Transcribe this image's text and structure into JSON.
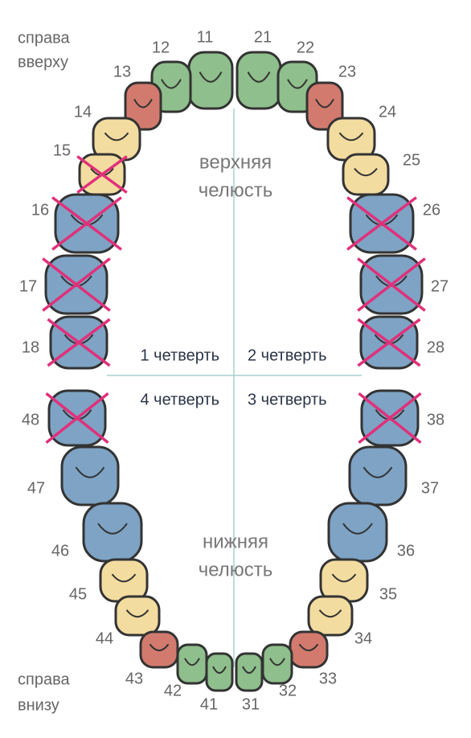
{
  "corner_notes": {
    "top_left": [
      "справа",
      "вверху"
    ],
    "bottom_left": [
      "справа",
      "внизу"
    ]
  },
  "jaw_labels": {
    "upper": [
      "верхняя",
      "челюсть"
    ],
    "lower": [
      "нижняя",
      "челюсть"
    ]
  },
  "quadrants": [
    "1 четверть",
    "2 четверть",
    "3 четверть",
    "4 четверть"
  ],
  "teeth": [
    {
      "label": "11",
      "color": "#8fbf8c",
      "crossed": false
    },
    {
      "label": "21",
      "color": "#8fbf8c",
      "crossed": false
    },
    {
      "label": "12",
      "color": "#8fbf8c",
      "crossed": false
    },
    {
      "label": "22",
      "color": "#8fbf8c",
      "crossed": false
    },
    {
      "label": "13",
      "color": "#d27a6e",
      "crossed": false
    },
    {
      "label": "23",
      "color": "#d27a6e",
      "crossed": false
    },
    {
      "label": "14",
      "color": "#f3dca0",
      "crossed": false
    },
    {
      "label": "24",
      "color": "#f3dca0",
      "crossed": false
    },
    {
      "label": "15",
      "color": "#f3dca0",
      "crossed": true
    },
    {
      "label": "25",
      "color": "#f3dca0",
      "crossed": false
    },
    {
      "label": "16",
      "color": "#7ea3c4",
      "crossed": true
    },
    {
      "label": "26",
      "color": "#7ea3c4",
      "crossed": true
    },
    {
      "label": "17",
      "color": "#7ea3c4",
      "crossed": true
    },
    {
      "label": "27",
      "color": "#7ea3c4",
      "crossed": true
    },
    {
      "label": "18",
      "color": "#7ea3c4",
      "crossed": true
    },
    {
      "label": "28",
      "color": "#7ea3c4",
      "crossed": true
    },
    {
      "label": "48",
      "color": "#7ea3c4",
      "crossed": true
    },
    {
      "label": "38",
      "color": "#7ea3c4",
      "crossed": true
    },
    {
      "label": "47",
      "color": "#7ea3c4",
      "crossed": false
    },
    {
      "label": "37",
      "color": "#7ea3c4",
      "crossed": false
    },
    {
      "label": "46",
      "color": "#7ea3c4",
      "crossed": false
    },
    {
      "label": "36",
      "color": "#7ea3c4",
      "crossed": false
    },
    {
      "label": "45",
      "color": "#f3dca0",
      "crossed": false
    },
    {
      "label": "35",
      "color": "#f3dca0",
      "crossed": false
    },
    {
      "label": "44",
      "color": "#f3dca0",
      "crossed": false
    },
    {
      "label": "34",
      "color": "#f3dca0",
      "crossed": false
    },
    {
      "label": "43",
      "color": "#d27a6e",
      "crossed": false
    },
    {
      "label": "33",
      "color": "#d27a6e",
      "crossed": false
    },
    {
      "label": "42",
      "color": "#8fbf8c",
      "crossed": false
    },
    {
      "label": "32",
      "color": "#8fbf8c",
      "crossed": false
    },
    {
      "label": "41",
      "color": "#8fbf8c",
      "crossed": false
    },
    {
      "label": "31",
      "color": "#8fbf8c",
      "crossed": false
    }
  ]
}
